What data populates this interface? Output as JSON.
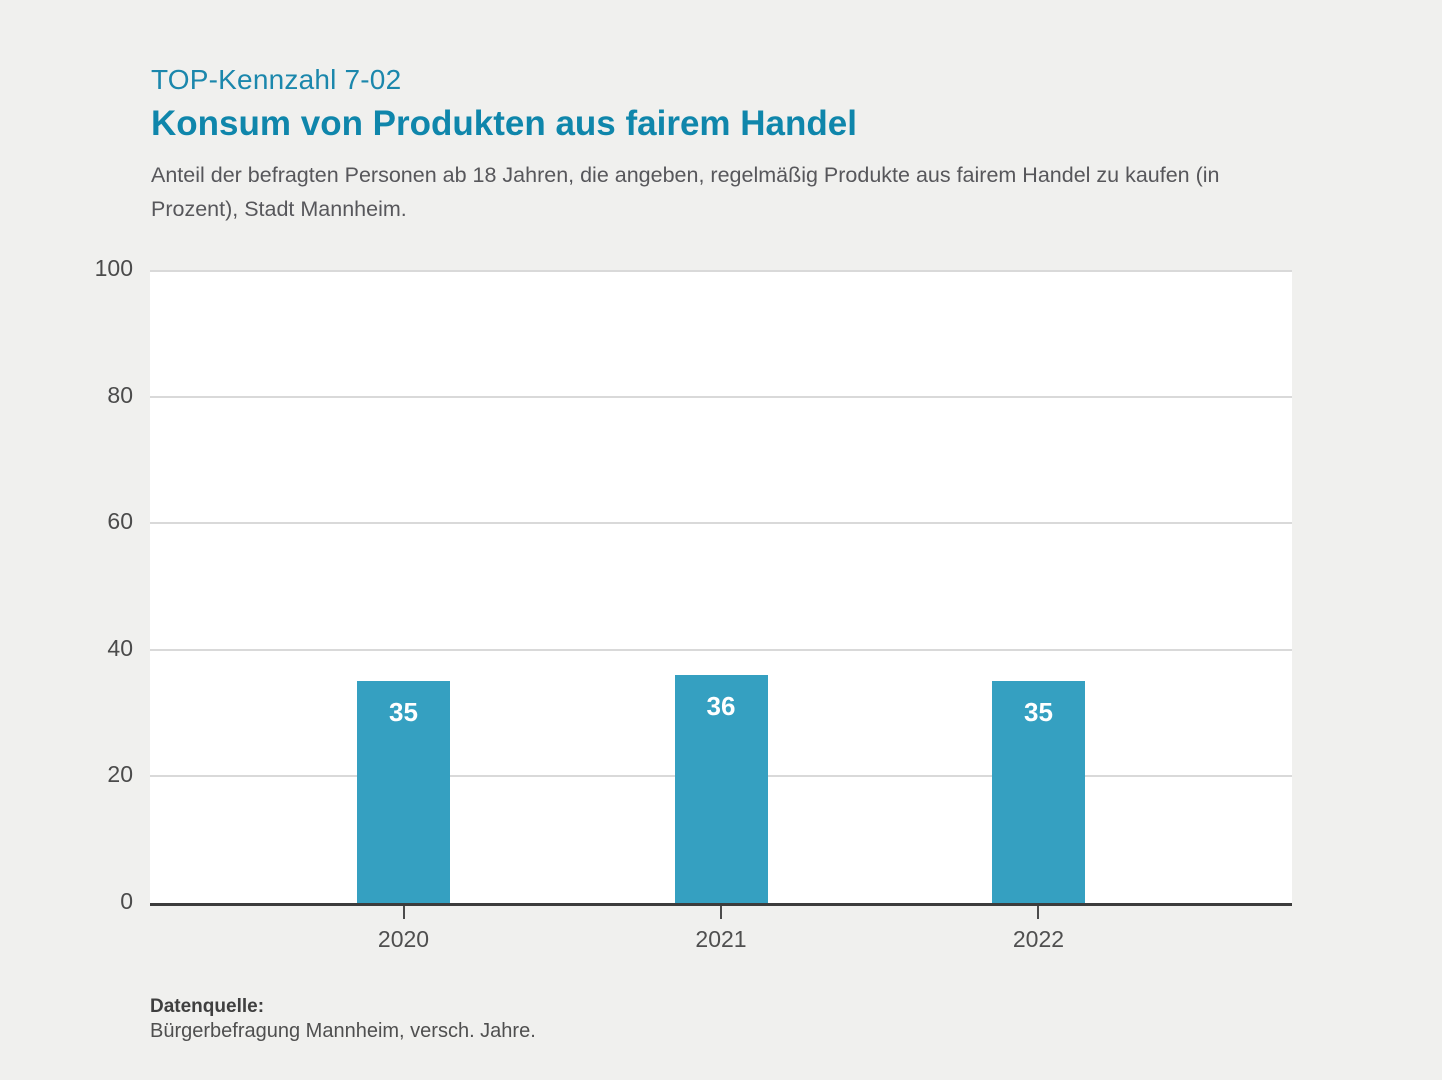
{
  "header": {
    "kicker": "TOP-Kennzahl 7-02",
    "title": "Konsum von Produkten aus fairem Handel",
    "subtitle": "Anteil der befragten Personen ab 18 Jahren, die angeben, regelmäßig Produkte aus fairem Handel zu kaufen (in Prozent), Stadt Mannheim."
  },
  "chart_data": {
    "type": "bar",
    "title": "Konsum von Produkten aus fairem Handel",
    "categories": [
      "2020",
      "2021",
      "2022"
    ],
    "values": [
      35,
      36,
      35
    ],
    "bar_labels": [
      "35",
      "36",
      "35"
    ],
    "xlabel": "",
    "ylabel": "",
    "ylim": [
      0,
      100
    ],
    "yticks": [
      0,
      20,
      40,
      60,
      80,
      100
    ],
    "grid": true,
    "legend": "none",
    "bar_color": "#35a0c1",
    "bar_label_color": "#ffffff",
    "plot_background": "#ffffff",
    "page_background": "#f0f0ee"
  },
  "footer": {
    "source_label": "Datenquelle:",
    "source_text": "Bürgerbefragung Mannheim, versch. Jahre."
  },
  "colors": {
    "accent": "#0f86ab",
    "bar": "#35a0c1",
    "grid": "#d9d9d9",
    "axis": "#3c3c3c"
  }
}
